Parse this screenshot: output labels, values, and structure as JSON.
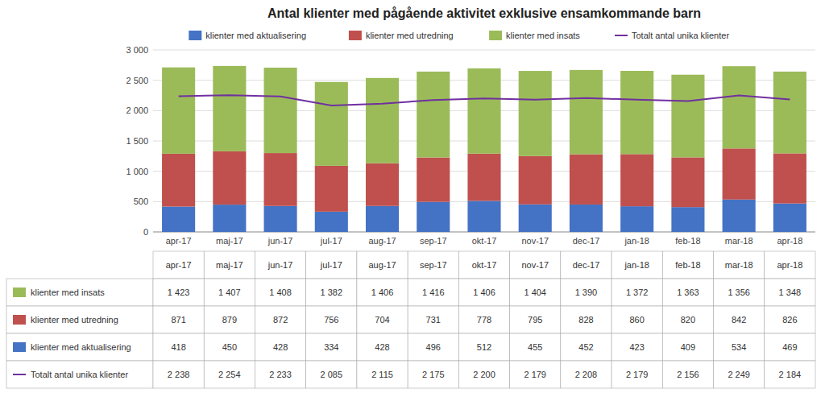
{
  "chart_data": {
    "type": "bar",
    "title": "Antal klienter med pågående aktivitet exklusive ensamkommande barn",
    "categories": [
      "apr-17",
      "maj-17",
      "jun-17",
      "jul-17",
      "aug-17",
      "sep-17",
      "okt-17",
      "nov-17",
      "dec-17",
      "jan-18",
      "feb-18",
      "mar-18",
      "apr-18"
    ],
    "stacked": true,
    "grid": true,
    "legend": "top",
    "ylim": [
      0,
      3000
    ],
    "yticks": [
      0,
      500,
      {
        "value": 1000,
        "label": "1 000"
      },
      {
        "value": 1500,
        "label": "1 500"
      },
      {
        "value": 2000,
        "label": "2 000"
      },
      {
        "value": 2500,
        "label": "2 500"
      },
      {
        "value": 3000,
        "label": "3 000"
      }
    ],
    "series": [
      {
        "name": "klienter med aktualisering",
        "type": "bar",
        "color": "#4472C4",
        "values": [
          418,
          450,
          428,
          334,
          428,
          496,
          512,
          455,
          452,
          423,
          409,
          534,
          469
        ],
        "value_labels": [
          "418",
          "450",
          "428",
          "334",
          "428",
          "496",
          "512",
          "455",
          "452",
          "423",
          "409",
          "534",
          "469"
        ]
      },
      {
        "name": "klienter med utredning",
        "type": "bar",
        "color": "#C0504D",
        "values": [
          871,
          879,
          872,
          756,
          704,
          731,
          778,
          795,
          828,
          860,
          820,
          842,
          826
        ],
        "value_labels": [
          "871",
          "879",
          "872",
          "756",
          "704",
          "731",
          "778",
          "795",
          "828",
          "860",
          "820",
          "842",
          "826"
        ]
      },
      {
        "name": "klienter med insats",
        "type": "bar",
        "color": "#9BBB59",
        "values": [
          1423,
          1407,
          1408,
          1382,
          1406,
          1416,
          1406,
          1404,
          1390,
          1372,
          1363,
          1356,
          1348
        ],
        "value_labels": [
          "1 423",
          "1 407",
          "1 408",
          "1 382",
          "1 406",
          "1 416",
          "1 406",
          "1 404",
          "1 390",
          "1 372",
          "1 363",
          "1 356",
          "1 348"
        ]
      },
      {
        "name": "Totalt antal unika klienter",
        "type": "line",
        "color": "#7030A0",
        "values": [
          2238,
          2254,
          2233,
          2085,
          2115,
          2175,
          2200,
          2179,
          2208,
          2179,
          2156,
          2249,
          2184
        ],
        "value_labels": [
          "2 238",
          "2 254",
          "2 233",
          "2 085",
          "2 115",
          "2 175",
          "2 200",
          "2 179",
          "2 208",
          "2 179",
          "2 156",
          "2 249",
          "2 184"
        ]
      }
    ]
  }
}
